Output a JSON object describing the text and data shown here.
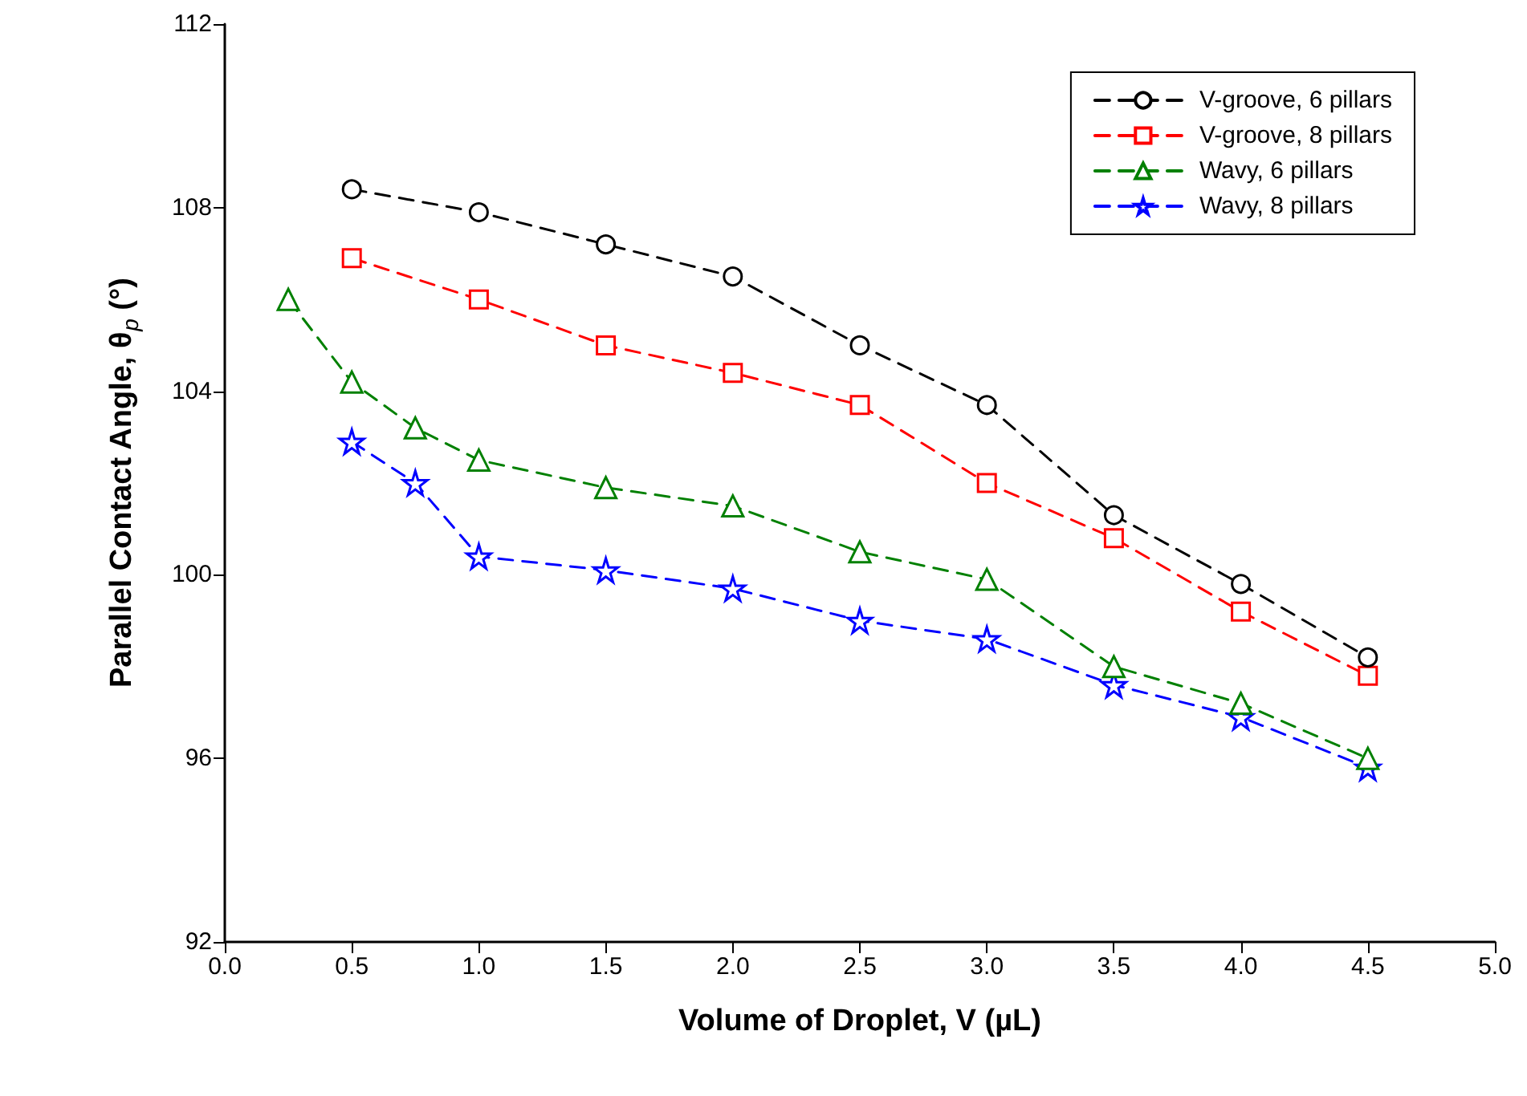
{
  "chart_data": {
    "type": "line",
    "xlabel": "Volume of Droplet, V (µL)",
    "ylabel": "Parallel Contact Angle, θ$_{p}$ (°)",
    "xlim": [
      0,
      5
    ],
    "xticks": [
      {
        "value": 0,
        "label": "0.0"
      },
      {
        "value": 0.5,
        "label": "0.5"
      },
      {
        "value": 1,
        "label": "1.0"
      },
      {
        "value": 1.5,
        "label": "1.5"
      },
      {
        "value": 2,
        "label": "2.0"
      },
      {
        "value": 2.5,
        "label": "2.5"
      },
      {
        "value": 3,
        "label": "3.0"
      },
      {
        "value": 3.5,
        "label": "3.5"
      },
      {
        "value": 4,
        "label": "4.0"
      },
      {
        "value": 4.5,
        "label": "4.5"
      },
      {
        "value": 5,
        "label": "5.0"
      }
    ],
    "ylim": [
      92,
      112
    ],
    "yticks": [
      92,
      96,
      100,
      104,
      108,
      112
    ],
    "grid": false,
    "legend": "top right",
    "line_style": "dashed",
    "series": [
      {
        "name": "V-groove, 6 pillars",
        "color": "#000000",
        "marker": "circle",
        "x": [
          0.5,
          1,
          1.5,
          2,
          2.5,
          3,
          3.5,
          4,
          4.5
        ],
        "values": [
          108.4,
          107.9,
          107.2,
          106.5,
          105.0,
          103.7,
          101.3,
          99.8,
          98.2
        ]
      },
      {
        "name": "V-groove, 8 pillars",
        "color": "#ff0000",
        "marker": "square",
        "x": [
          0.5,
          1,
          1.5,
          2,
          2.5,
          3,
          3.5,
          4,
          4.5
        ],
        "values": [
          106.9,
          106.0,
          105.0,
          104.4,
          103.7,
          102.0,
          100.8,
          99.2,
          97.8
        ]
      },
      {
        "name": "Wavy, 6 pillars",
        "color": "#008000",
        "marker": "triangle",
        "x": [
          0.25,
          0.5,
          0.75,
          1,
          1.5,
          2,
          2.5,
          3,
          3.5,
          4,
          4.5
        ],
        "values": [
          106.0,
          104.2,
          103.2,
          102.5,
          101.9,
          101.5,
          100.5,
          99.9,
          98.0,
          97.2,
          96.0
        ]
      },
      {
        "name": "Wavy, 8 pillars",
        "color": "#0000ff",
        "marker": "star",
        "x": [
          0.5,
          0.75,
          1,
          1.5,
          2,
          2.5,
          3,
          3.5,
          4,
          4.5
        ],
        "values": [
          102.9,
          102.0,
          100.4,
          100.1,
          99.7,
          99.0,
          98.6,
          97.6,
          96.9,
          95.8
        ]
      }
    ]
  }
}
